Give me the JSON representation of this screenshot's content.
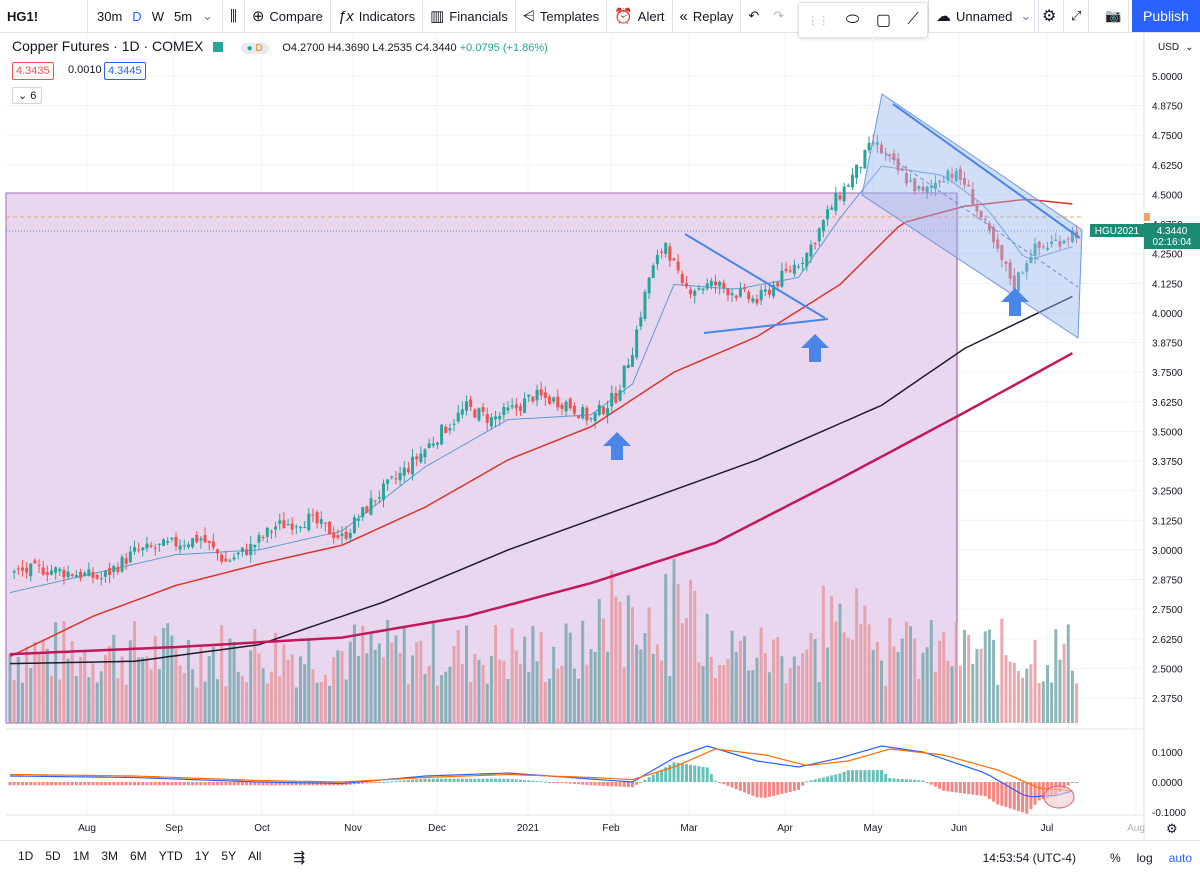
{
  "toolbar": {
    "symbol": "HG1!",
    "intervals": [
      "30m",
      "D",
      "W",
      "5m"
    ],
    "active_interval": "D",
    "compare": "Compare",
    "indicators": "Indicators",
    "financials": "Financials",
    "templates": "Templates",
    "alert": "Alert",
    "replay": "Replay",
    "layout_name": "Unnamed",
    "publish": "Publish"
  },
  "legend": {
    "title": "Copper Futures · 1D · COMEX",
    "open": "O4.2700",
    "high": "H4.3690",
    "low": "L4.2535",
    "close": "C4.3440",
    "change": "+0.0795 (+1.86%)",
    "bid": "4.3435",
    "spread": "0.0010",
    "ask": "4.3445",
    "indicator_count": "6"
  },
  "price_axis": {
    "currency": "USD",
    "current_label": "HGU2021",
    "current_price": "4.3440",
    "countdown": "02:16:04"
  },
  "bottom": {
    "ranges": [
      "1D",
      "5D",
      "1M",
      "3M",
      "6M",
      "YTD",
      "1Y",
      "5Y",
      "All"
    ],
    "time": "14:53:54 (UTC-4)",
    "percent": "%",
    "log": "log",
    "auto": "auto"
  },
  "chart_data": {
    "type": "candlestick",
    "title": "Copper Futures · 1D · COMEX",
    "ylim": [
      2.3,
      5.05
    ],
    "y_ticks": [
      2.375,
      2.5,
      2.625,
      2.75,
      2.875,
      3.0,
      3.125,
      3.25,
      3.375,
      3.5,
      3.625,
      3.75,
      3.875,
      4.0,
      4.125,
      4.25,
      4.375,
      4.5,
      4.625,
      4.75,
      4.875,
      5.0
    ],
    "y_tick_labels": [
      "2.3750",
      "2.5000",
      "2.6250",
      "2.7500",
      "2.8750",
      "3.0000",
      "3.1250",
      "3.2500",
      "3.3750",
      "3.5000",
      "3.6250",
      "3.7500",
      "3.8750",
      "4.0000",
      "4.1250",
      "4.2500",
      "4.3750",
      "4.5000",
      "4.6250",
      "4.7500",
      "4.8750",
      "5.0000"
    ],
    "x_labels": [
      "Aug",
      "Sep",
      "Oct",
      "Nov",
      "Dec",
      "2021",
      "Feb",
      "Mar",
      "Apr",
      "May",
      "Jun",
      "Jul",
      "Aug"
    ],
    "macd_ticks": [
      0.1,
      0.0,
      -0.1
    ],
    "macd_tick_labels": [
      "0.1000",
      "0.0000",
      "-0.1000"
    ],
    "series": [
      {
        "name": "close",
        "points": [
          [
            0,
            2.9
          ],
          [
            8,
            2.92
          ],
          [
            16,
            2.9
          ],
          [
            22,
            2.88
          ],
          [
            30,
            2.99
          ],
          [
            38,
            3.02
          ],
          [
            46,
            3.05
          ],
          [
            52,
            2.95
          ],
          [
            58,
            3.01
          ],
          [
            64,
            3.1
          ],
          [
            72,
            3.13
          ],
          [
            80,
            3.05
          ],
          [
            88,
            3.22
          ],
          [
            96,
            3.35
          ],
          [
            104,
            3.5
          ],
          [
            110,
            3.6
          ],
          [
            116,
            3.55
          ],
          [
            122,
            3.6
          ],
          [
            126,
            3.65
          ],
          [
            134,
            3.62
          ],
          [
            140,
            3.55
          ],
          [
            146,
            3.65
          ],
          [
            150,
            3.85
          ],
          [
            154,
            4.15
          ],
          [
            158,
            4.3
          ],
          [
            162,
            4.1
          ],
          [
            170,
            4.12
          ],
          [
            180,
            4.05
          ],
          [
            186,
            4.15
          ],
          [
            192,
            4.25
          ],
          [
            198,
            4.45
          ],
          [
            204,
            4.6
          ],
          [
            208,
            4.72
          ],
          [
            214,
            4.6
          ],
          [
            220,
            4.5
          ],
          [
            226,
            4.6
          ],
          [
            230,
            4.55
          ],
          [
            234,
            4.4
          ],
          [
            238,
            4.25
          ],
          [
            242,
            4.12
          ],
          [
            246,
            4.26
          ],
          [
            252,
            4.3
          ],
          [
            256,
            4.34
          ]
        ]
      },
      {
        "name": "sma20",
        "points": [
          [
            0,
            2.82
          ],
          [
            20,
            2.9
          ],
          [
            40,
            2.98
          ],
          [
            60,
            3.0
          ],
          [
            80,
            3.08
          ],
          [
            100,
            3.35
          ],
          [
            120,
            3.55
          ],
          [
            140,
            3.57
          ],
          [
            150,
            3.7
          ],
          [
            160,
            4.12
          ],
          [
            175,
            4.1
          ],
          [
            190,
            4.15
          ],
          [
            200,
            4.4
          ],
          [
            210,
            4.62
          ],
          [
            225,
            4.58
          ],
          [
            235,
            4.45
          ],
          [
            245,
            4.22
          ],
          [
            256,
            4.28
          ]
        ]
      },
      {
        "name": "sma50",
        "points": [
          [
            0,
            2.55
          ],
          [
            20,
            2.72
          ],
          [
            40,
            2.85
          ],
          [
            60,
            2.94
          ],
          [
            80,
            3.02
          ],
          [
            100,
            3.18
          ],
          [
            120,
            3.38
          ],
          [
            140,
            3.52
          ],
          [
            160,
            3.75
          ],
          [
            180,
            3.9
          ],
          [
            200,
            4.12
          ],
          [
            215,
            4.38
          ],
          [
            230,
            4.45
          ],
          [
            245,
            4.48
          ],
          [
            256,
            4.46
          ]
        ]
      },
      {
        "name": "sma100",
        "points": [
          [
            0,
            2.52
          ],
          [
            30,
            2.53
          ],
          [
            60,
            2.6
          ],
          [
            90,
            2.78
          ],
          [
            120,
            3.0
          ],
          [
            150,
            3.19
          ],
          [
            180,
            3.38
          ],
          [
            210,
            3.61
          ],
          [
            230,
            3.85
          ],
          [
            256,
            4.07
          ]
        ]
      },
      {
        "name": "sma200",
        "points": [
          [
            0,
            2.56
          ],
          [
            40,
            2.59
          ],
          [
            80,
            2.63
          ],
          [
            110,
            2.72
          ],
          [
            140,
            2.86
          ],
          [
            170,
            3.03
          ],
          [
            200,
            3.3
          ],
          [
            230,
            3.58
          ],
          [
            256,
            3.83
          ]
        ]
      }
    ],
    "annotations": [
      "shaded range",
      "falling wedge",
      "descending channel",
      "support arrows"
    ]
  }
}
